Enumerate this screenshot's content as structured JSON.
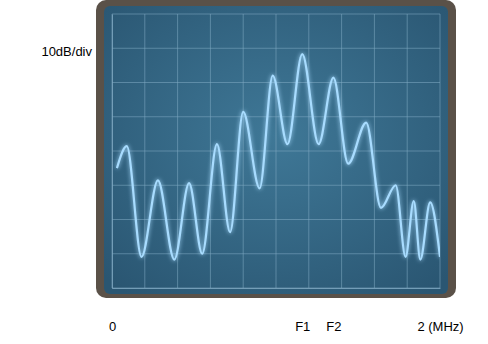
{
  "chart_data": {
    "type": "line",
    "ylabel": "10dB/div",
    "x": [
      0.03,
      0.09,
      0.18,
      0.28,
      0.38,
      0.47,
      0.55,
      0.64,
      0.72,
      0.8,
      0.9,
      0.98,
      1.07,
      1.16,
      1.26,
      1.35,
      1.44,
      1.55,
      1.64,
      1.73,
      1.79,
      1.84,
      1.88,
      1.94,
      2.0
    ],
    "values": [
      -45,
      -38.6,
      -70.9,
      -48.6,
      -71.7,
      -49.4,
      -70,
      -38,
      -63.7,
      -28.6,
      -50.9,
      -18,
      -38,
      -11.7,
      -38,
      -18.6,
      -43.7,
      -31.7,
      -56.6,
      -50,
      -70.9,
      -54.6,
      -71.7,
      -55,
      -70.9
    ],
    "color": "#a8dcff",
    "xlim": [
      0,
      2
    ],
    "xticks": [
      {
        "value": 0,
        "label": "0"
      },
      {
        "value": 1.16,
        "label": "F1"
      },
      {
        "value": 1.35,
        "label": "F2"
      },
      {
        "value": 2,
        "label": "2 (MHz)"
      }
    ],
    "ylim": [
      -80,
      0
    ],
    "yticks": [
      -80,
      -70,
      -60,
      -50,
      -40,
      -30,
      -20,
      -10,
      0
    ],
    "grid": true,
    "tick_labels": "x"
  }
}
